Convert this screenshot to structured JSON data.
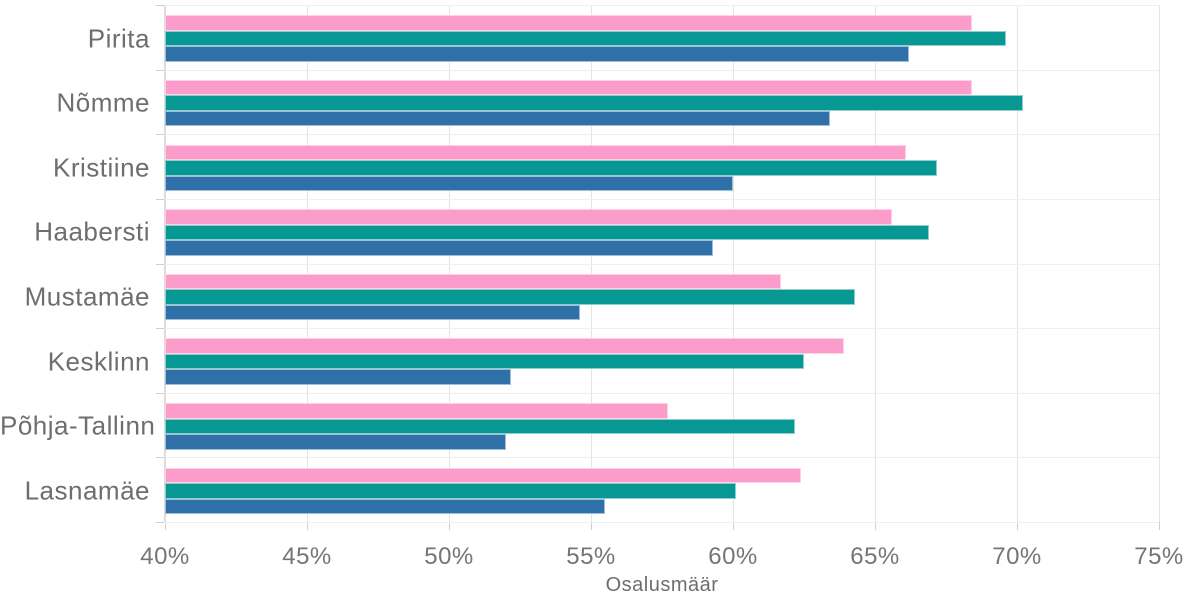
{
  "chart_data": {
    "type": "bar",
    "orientation": "horizontal",
    "title": "",
    "xlabel": "Osalusmäär",
    "ylabel": "",
    "xlim": [
      40,
      75
    ],
    "x_tick_labels": [
      "40%",
      "45%",
      "50%",
      "55%",
      "60%",
      "65%",
      "70%",
      "75%"
    ],
    "x_tick_values": [
      40,
      45,
      50,
      55,
      60,
      65,
      70,
      75
    ],
    "grid": "vertical gridlines at each 5%, faint horizontal separators between category bands",
    "legend_position": "none",
    "value_unit": "%",
    "categories": [
      "Pirita",
      "Nõmme",
      "Kristiine",
      "Haabersti",
      "Mustamäe",
      "Kesklinn",
      "Põhja-Tallinn",
      "Lasnamäe"
    ],
    "series": [
      {
        "name": "pink-series",
        "color": "#FB9CCB",
        "values": [
          68.4,
          68.4,
          66.1,
          65.6,
          61.7,
          63.9,
          57.7,
          62.4
        ]
      },
      {
        "name": "teal-series",
        "color": "#089894",
        "values": [
          69.6,
          70.2,
          67.2,
          66.9,
          64.3,
          62.5,
          62.2,
          60.1
        ]
      },
      {
        "name": "blue-series",
        "color": "#2F70A9",
        "values": [
          66.2,
          63.4,
          60.0,
          59.3,
          54.6,
          52.2,
          52.0,
          55.5
        ]
      }
    ]
  },
  "colors": {
    "background": "#ffffff",
    "gridline": "#e4e4e4",
    "axis_line": "#dcdcdc",
    "tick_mark": "#cfcfcf",
    "band_separator": "#f0f0f0",
    "label_text": "#6e6e6e",
    "tick_text": "#757575"
  }
}
